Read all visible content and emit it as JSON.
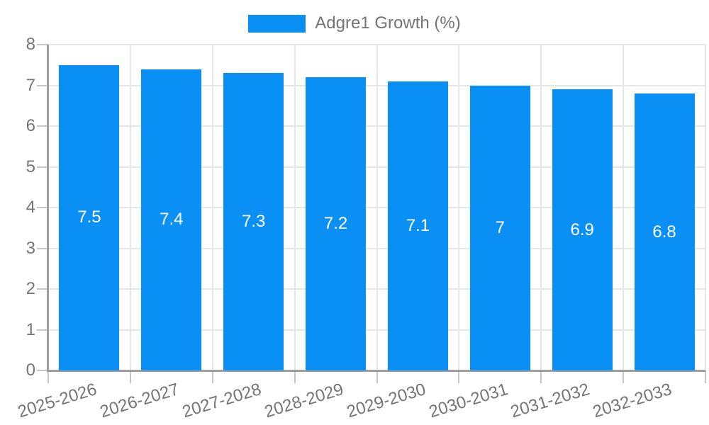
{
  "legend": {
    "label": "Adgre1 Growth (%)"
  },
  "colors": {
    "bar": "#0a90f5",
    "bar_label": "#ffffff",
    "axis": "#9e9e9e",
    "tick": "#c6c6c6",
    "grid": "#e6e6e6",
    "label_text": "#757575",
    "background": "#ffffff"
  },
  "chart_data": {
    "type": "bar",
    "title": "",
    "xlabel": "",
    "ylabel": "",
    "categories": [
      "2025-2026",
      "2026-2027",
      "2027-2028",
      "2028-2029",
      "2029-2030",
      "2030-2031",
      "2031-2032",
      "2032-2033"
    ],
    "series": [
      {
        "name": "Adgre1 Growth (%)",
        "values": [
          7.5,
          7.4,
          7.3,
          7.2,
          7.1,
          7,
          6.9,
          6.8
        ]
      }
    ],
    "value_labels": [
      "7.5",
      "7.4",
      "7.3",
      "7.2",
      "7.1",
      "7",
      "6.9",
      "6.8"
    ],
    "ylim": [
      0,
      8
    ],
    "yticks": [
      0,
      1,
      2,
      3,
      4,
      5,
      6,
      7,
      8
    ],
    "grid": true,
    "legend_position": "top",
    "xlabel_rotation_deg": -17
  }
}
